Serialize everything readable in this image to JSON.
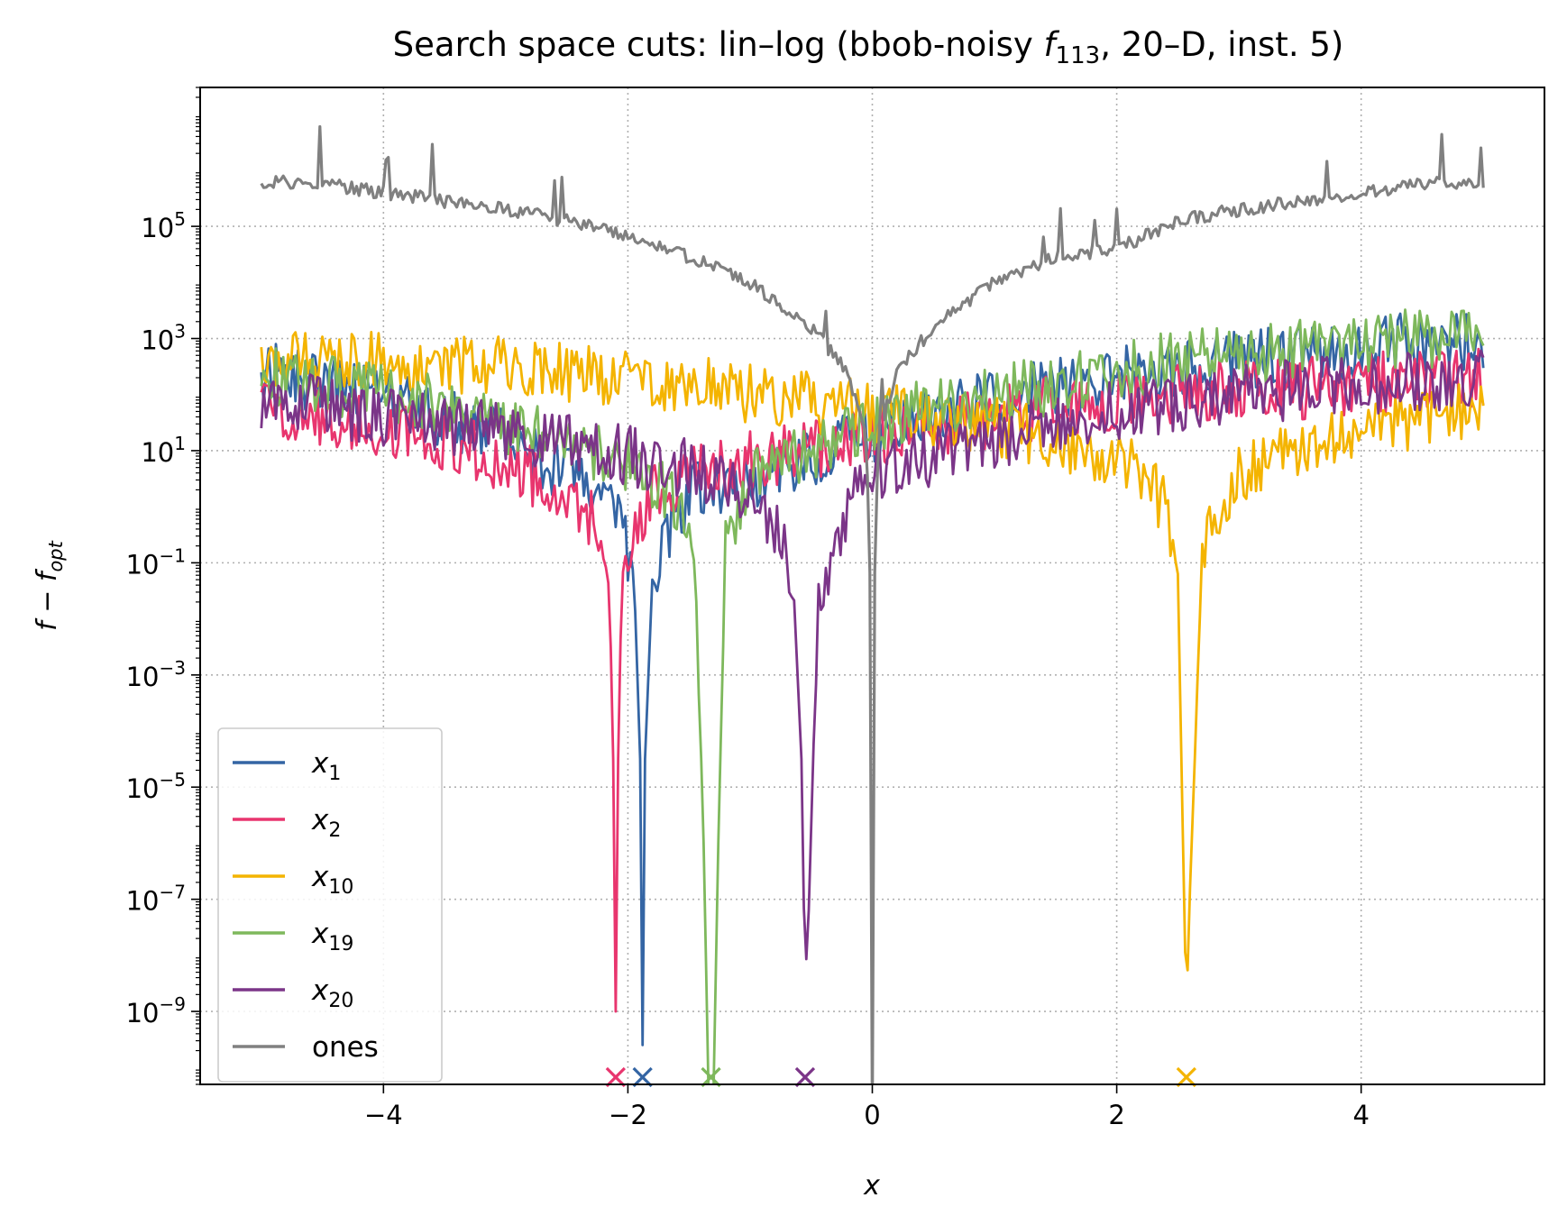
{
  "chart_data": {
    "type": "line",
    "title": {
      "prefix": "Search space cuts: lin–log (bbob-noisy ",
      "func": "f",
      "func_sub": "113",
      "suffix": ", 20–D, inst. 5)"
    },
    "xlabel": "x",
    "ylabel": {
      "main": "f − f",
      "sub": "opt"
    },
    "yscale": "log",
    "xlim": [
      -5.5,
      5.5
    ],
    "ylim": [
      5e-11,
      30000000.0
    ],
    "grid": true,
    "legend_position": "lower-left",
    "x_ticks": [
      -4,
      -2,
      0,
      2,
      4
    ],
    "x_tick_labels": [
      "−4",
      "−2",
      "0",
      "2",
      "4"
    ],
    "y_ticks": [
      {
        "exp": 5,
        "label_base": "10",
        "label_exp": "5"
      },
      {
        "exp": 3,
        "label_base": "10",
        "label_exp": "3"
      },
      {
        "exp": 1,
        "label_base": "10",
        "label_exp": "1"
      },
      {
        "exp": -1,
        "label_base": "10",
        "label_exp": "−1"
      },
      {
        "exp": -3,
        "label_base": "10",
        "label_exp": "−3"
      },
      {
        "exp": -5,
        "label_base": "10",
        "label_exp": "−5"
      },
      {
        "exp": -7,
        "label_base": "10",
        "label_exp": "−7"
      },
      {
        "exp": -9,
        "label_base": "10",
        "label_exp": "−9"
      }
    ],
    "series": [
      {
        "name": "x",
        "sub": "1",
        "color": "#3465a4",
        "opt": -1.88,
        "x": [
          -5,
          -4.5,
          -4,
          -3.5,
          -3,
          -2.5,
          -2.2,
          -2.05,
          -1.95,
          -1.9,
          -1.88,
          -1.86,
          -1.8,
          -1.7,
          -1.5,
          -1,
          -0.5,
          0,
          0.5,
          1,
          1.5,
          2,
          2.5,
          3,
          3.5,
          4,
          4.5,
          5
        ],
        "y": [
          2.4,
          2.2,
          1.9,
          1.6,
          1.2,
          0.6,
          0.1,
          -0.4,
          -1.2,
          -4.5,
          -9.6,
          -4.5,
          -1.3,
          -0.5,
          0.2,
          0.5,
          0.9,
          1.3,
          1.6,
          1.9,
          2.1,
          2.3,
          2.5,
          2.6,
          2.7,
          2.8,
          2.95,
          3.0
        ]
      },
      {
        "name": "x",
        "sub": "2",
        "color": "#e8356e",
        "opt": -2.1,
        "x": [
          -5,
          -4.5,
          -4,
          -3.5,
          -3,
          -2.6,
          -2.3,
          -2.2,
          -2.15,
          -2.12,
          -2.1,
          -2.08,
          -2.05,
          -2.0,
          -1.8,
          -1.5,
          -1,
          -0.5,
          0,
          0.5,
          1,
          1.5,
          2,
          2.5,
          3,
          3.5,
          4,
          4.5,
          5
        ],
        "y": [
          1.8,
          1.6,
          1.4,
          1.2,
          0.8,
          0.3,
          -0.2,
          -0.8,
          -1.5,
          -4.5,
          -9.0,
          -4.5,
          -1.3,
          -0.6,
          0.2,
          0.5,
          0.8,
          1.0,
          1.2,
          1.4,
          1.6,
          1.8,
          1.9,
          2.0,
          2.1,
          2.1,
          2.2,
          2.25,
          2.3
        ]
      },
      {
        "name": "x",
        "sub": "10",
        "color": "#f4b400",
        "opt": 2.57,
        "x": [
          -5,
          -4,
          -3,
          -2,
          -1,
          0,
          1,
          1.5,
          2,
          2.2,
          2.4,
          2.5,
          2.55,
          2.57,
          2.6,
          2.7,
          2.8,
          3,
          3.5,
          4,
          4.5,
          5
        ],
        "y": [
          2.6,
          2.6,
          2.5,
          2.3,
          2.0,
          1.7,
          1.4,
          1.2,
          0.9,
          0.6,
          0.0,
          -1.2,
          -6.9,
          -9.0,
          -6.8,
          -0.9,
          -0.2,
          0.5,
          1.1,
          1.4,
          1.6,
          1.7
        ]
      },
      {
        "name": "x",
        "sub": "19",
        "color": "#7eb85c",
        "opt": -1.32,
        "x": [
          -5,
          -4.5,
          -4,
          -3.5,
          -3,
          -2.5,
          -2,
          -1.6,
          -1.45,
          -1.38,
          -1.34,
          -1.32,
          -1.3,
          -1.26,
          -1.2,
          -1,
          -0.5,
          0,
          0.5,
          1,
          1.5,
          2,
          2.5,
          3,
          3.5,
          4,
          4.5,
          5
        ],
        "y": [
          2.4,
          2.2,
          2.0,
          1.8,
          1.5,
          1.2,
          0.8,
          0.1,
          -0.7,
          -6.0,
          -10.5,
          -10.5,
          -10.5,
          -6.0,
          -0.6,
          0.5,
          1.0,
          1.4,
          1.8,
          2.0,
          2.2,
          2.4,
          2.6,
          2.7,
          2.8,
          2.9,
          3.0,
          3.1
        ]
      },
      {
        "name": "x",
        "sub": "20",
        "color": "#7b3588",
        "opt": -0.55,
        "x": [
          -5,
          -4.5,
          -4,
          -3.5,
          -3,
          -2.5,
          -2,
          -1.5,
          -1,
          -0.8,
          -0.65,
          -0.58,
          -0.55,
          -0.52,
          -0.45,
          -0.35,
          -0.2,
          0,
          0.5,
          1,
          1.5,
          2,
          2.5,
          3,
          3.5,
          4,
          4.5,
          5
        ],
        "y": [
          1.9,
          1.8,
          1.6,
          1.5,
          1.3,
          1.1,
          0.9,
          0.7,
          0.3,
          -0.3,
          -1.2,
          -4.5,
          -8.5,
          -7.2,
          -2.0,
          -1.0,
          0.0,
          0.5,
          0.9,
          1.2,
          1.5,
          1.7,
          1.9,
          2.0,
          2.1,
          2.2,
          2.2,
          2.3
        ]
      },
      {
        "name": "ones",
        "sub": "",
        "color": "#808080",
        "opt": null,
        "x": [
          -5,
          -4.5,
          -4,
          -3.5,
          -3,
          -2.5,
          -2,
          -1.5,
          -1,
          -0.5,
          -0.2,
          -0.05,
          -0.01,
          0,
          0.01,
          0.05,
          0.2,
          0.5,
          1,
          1.5,
          2,
          2.5,
          3,
          3.5,
          4,
          4.5,
          5
        ],
        "y": [
          5.8,
          5.75,
          5.6,
          5.45,
          5.3,
          5.1,
          4.8,
          4.45,
          4.0,
          3.2,
          2.4,
          1.3,
          -2.0,
          -11,
          -2.0,
          1.3,
          2.4,
          3.2,
          4.0,
          4.45,
          4.6,
          5.1,
          5.3,
          5.45,
          5.6,
          5.75,
          5.8
        ]
      }
    ],
    "legend": [
      {
        "name": "x",
        "sub": "1",
        "color": "#3465a4"
      },
      {
        "name": "x",
        "sub": "2",
        "color": "#e8356e"
      },
      {
        "name": "x",
        "sub": "10",
        "color": "#f4b400"
      },
      {
        "name": "x",
        "sub": "19",
        "color": "#7eb85c"
      },
      {
        "name": "x",
        "sub": "20",
        "color": "#7b3588"
      },
      {
        "name": "ones",
        "sub": "",
        "color": "#808080"
      }
    ],
    "markers": [
      {
        "x": -2.1,
        "color": "#e8356e"
      },
      {
        "x": -1.88,
        "color": "#3465a4"
      },
      {
        "x": -1.32,
        "color": "#7eb85c"
      },
      {
        "x": -0.55,
        "color": "#7b3588"
      },
      {
        "x": 2.57,
        "color": "#f4b400"
      }
    ]
  }
}
